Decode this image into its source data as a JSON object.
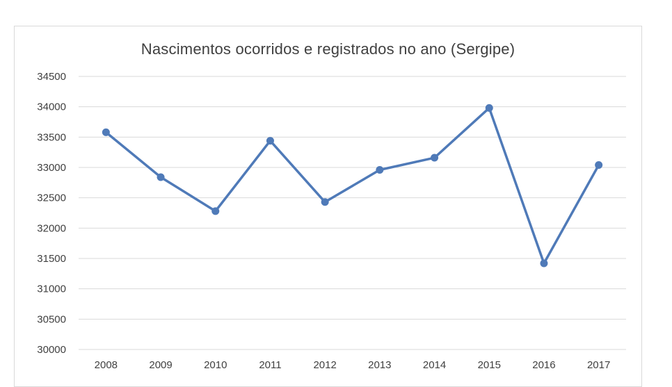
{
  "chart_data": {
    "type": "line",
    "title": "Nascimentos ocorridos e registrados no ano (Sergipe)",
    "xlabel": "",
    "ylabel": "",
    "categories": [
      "2008",
      "2009",
      "2010",
      "2011",
      "2012",
      "2013",
      "2014",
      "2015",
      "2016",
      "2017"
    ],
    "series": [
      {
        "values": [
          33580,
          32840,
          32280,
          33440,
          32430,
          32960,
          33160,
          33980,
          31420,
          33040
        ],
        "color": "#4f7ab8"
      }
    ],
    "ylim": [
      30000,
      34500
    ],
    "y_ticks": [
      "30000",
      "30500",
      "31000",
      "31500",
      "32000",
      "32500",
      "33000",
      "33500",
      "34000",
      "34500"
    ],
    "grid": "horizontal",
    "legend": "none",
    "markers": true
  },
  "colors": {
    "line": "#4f7ab8",
    "grid": "#d9d9d9",
    "text": "#404040"
  }
}
